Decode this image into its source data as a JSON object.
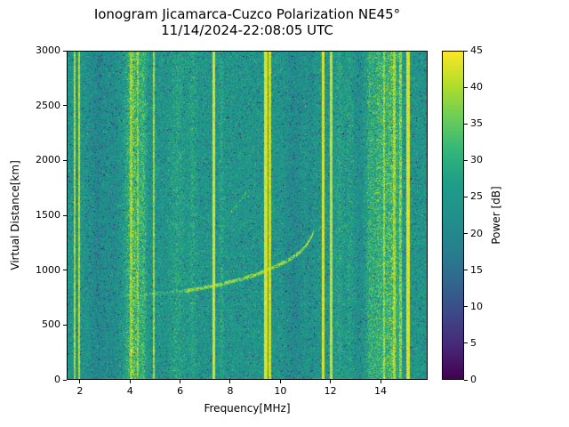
{
  "chart_data": {
    "type": "heatmap",
    "title": "Ionogram Jicamarca-Cuzco Polarization NE45°",
    "subtitle": "11/14/2024-22:08:05 UTC",
    "xlabel": "Frequency[MHz]",
    "ylabel": "Virtual Distance[km]",
    "colorbar_label": "Power [dB]",
    "colormap": "viridis",
    "colormap_stops": [
      "#440154",
      "#482878",
      "#3e4989",
      "#31688e",
      "#26828e",
      "#21918c",
      "#1f9e89",
      "#35b779",
      "#6ece58",
      "#b5de2b",
      "#fde725"
    ],
    "xlim": [
      1.47,
      15.88
    ],
    "ylim": [
      0,
      3000
    ],
    "clim": [
      0,
      45
    ],
    "xticks": [
      2,
      4,
      6,
      8,
      10,
      12,
      14
    ],
    "yticks": [
      0,
      500,
      1000,
      1500,
      2000,
      2500,
      3000
    ],
    "cticks": [
      0,
      5,
      10,
      15,
      20,
      25,
      30,
      35,
      40,
      45
    ],
    "background_power_db": {
      "mean": 24,
      "spread": 9
    },
    "rfi_bands": [
      {
        "f": 1.78,
        "w": 0.035,
        "style": "line",
        "amp": 34
      },
      {
        "f": 1.98,
        "w": 0.04,
        "style": "line",
        "amp": 36
      },
      {
        "f": 2.75,
        "w": 0.6,
        "style": "dark",
        "amp": 6
      },
      {
        "f": 3.35,
        "w": 0.25,
        "style": "dark",
        "amp": 4
      },
      {
        "f": 4.15,
        "w": 0.5,
        "style": "band",
        "amp": 14
      },
      {
        "f": 4.05,
        "w": 0.05,
        "style": "line",
        "amp": 30
      },
      {
        "f": 4.3,
        "w": 0.04,
        "style": "line",
        "amp": 28
      },
      {
        "f": 4.55,
        "w": 0.2,
        "style": "band",
        "amp": 8
      },
      {
        "f": 4.95,
        "w": 0.045,
        "style": "line",
        "amp": 33
      },
      {
        "f": 5.9,
        "w": 0.45,
        "style": "band",
        "amp": 5
      },
      {
        "f": 6.5,
        "w": 0.25,
        "style": "band",
        "amp": 5
      },
      {
        "f": 7.35,
        "w": 0.055,
        "style": "line",
        "amp": 40
      },
      {
        "f": 7.65,
        "w": 0.12,
        "style": "band",
        "amp": 6
      },
      {
        "f": 9.42,
        "w": 0.06,
        "style": "line",
        "amp": 40
      },
      {
        "f": 9.58,
        "w": 0.05,
        "style": "line",
        "amp": 38
      },
      {
        "f": 10.55,
        "w": 0.55,
        "style": "dark",
        "amp": 5
      },
      {
        "f": 11.2,
        "w": 0.2,
        "style": "dark",
        "amp": 3
      },
      {
        "f": 11.7,
        "w": 0.05,
        "style": "line",
        "amp": 40
      },
      {
        "f": 12.02,
        "w": 0.05,
        "style": "line",
        "amp": 38
      },
      {
        "f": 12.35,
        "w": 0.25,
        "style": "band",
        "amp": 5
      },
      {
        "f": 12.75,
        "w": 0.2,
        "style": "band",
        "amp": 4
      },
      {
        "f": 13.15,
        "w": 0.2,
        "style": "dark",
        "amp": 3
      },
      {
        "f": 13.55,
        "w": 0.25,
        "style": "band",
        "amp": 7
      },
      {
        "f": 13.9,
        "w": 0.45,
        "style": "band",
        "amp": 10
      },
      {
        "f": 14.45,
        "w": 0.55,
        "style": "band",
        "amp": 13
      },
      {
        "f": 14.15,
        "w": 0.04,
        "style": "line",
        "amp": 30
      },
      {
        "f": 14.55,
        "w": 0.05,
        "style": "line",
        "amp": 32
      },
      {
        "f": 14.8,
        "w": 0.04,
        "style": "line",
        "amp": 28
      },
      {
        "f": 15.1,
        "w": 0.06,
        "style": "line",
        "amp": 40
      }
    ],
    "echo_traces": [
      {
        "name": "main-echo-low",
        "points": [
          [
            3.7,
            765
          ],
          [
            4.5,
            775
          ],
          [
            5.3,
            788
          ],
          [
            6.2,
            808
          ]
        ],
        "density": 0.5,
        "amp": 32,
        "halfwidth": 1.8
      },
      {
        "name": "main-echo-high",
        "points": [
          [
            6.2,
            808
          ],
          [
            7.0,
            840
          ],
          [
            7.8,
            878
          ],
          [
            8.4,
            915
          ],
          [
            9.0,
            955
          ],
          [
            9.5,
            1000
          ],
          [
            10.0,
            1052
          ],
          [
            10.4,
            1100
          ],
          [
            10.8,
            1165
          ],
          [
            11.05,
            1230
          ],
          [
            11.25,
            1305
          ],
          [
            11.35,
            1365
          ]
        ],
        "density": 0.85,
        "amp": 36,
        "halfwidth": 2.2
      },
      {
        "name": "second-hop",
        "points": [
          [
            7.95,
            1510
          ],
          [
            8.35,
            1615
          ],
          [
            8.75,
            1745
          ]
        ],
        "density": 0.3,
        "amp": 30,
        "halfwidth": 1.6
      },
      {
        "name": "spread-dash-1",
        "points": [
          [
            11.5,
            1382
          ],
          [
            11.85,
            1392
          ]
        ],
        "density": 0.35,
        "amp": 31,
        "halfwidth": 1.4
      },
      {
        "name": "spread-dash-2",
        "points": [
          [
            12.45,
            1398
          ],
          [
            12.7,
            1402
          ]
        ],
        "density": 0.3,
        "amp": 30,
        "halfwidth": 1.4
      }
    ]
  }
}
